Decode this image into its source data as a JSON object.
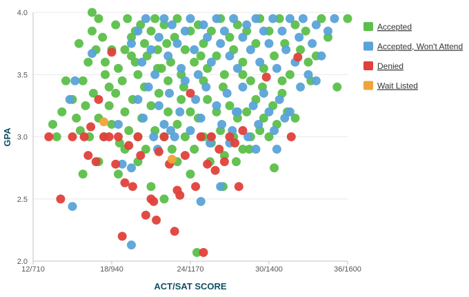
{
  "chart_data": {
    "type": "scatter",
    "xlabel": "ACT/SAT SCORE",
    "ylabel": "GPA",
    "xlim": [
      12,
      36
    ],
    "ylim": [
      2.0,
      4.0
    ],
    "x_ticks": [
      {
        "value": 12,
        "label": "12/710"
      },
      {
        "value": 18,
        "label": "18/940"
      },
      {
        "value": 24,
        "label": "24/1170"
      },
      {
        "value": 30,
        "label": "30/1400"
      },
      {
        "value": 36,
        "label": "36/1600"
      }
    ],
    "y_ticks": [
      {
        "value": 2.0,
        "label": "2.0"
      },
      {
        "value": 2.5,
        "label": "2.5"
      },
      {
        "value": 3.0,
        "label": "3.0"
      },
      {
        "value": 3.5,
        "label": "3.5"
      },
      {
        "value": 4.0,
        "label": "4.0"
      }
    ],
    "grid": true,
    "legend_position": "right",
    "series": [
      {
        "name": "Accepted",
        "color": "#5cbf4a",
        "points": [
          [
            15.5,
            3.75
          ],
          [
            15.8,
            3.45
          ],
          [
            16.2,
            3.6
          ],
          [
            16.5,
            4.0
          ],
          [
            16.5,
            3.85
          ],
          [
            17.0,
            3.95
          ],
          [
            17.3,
            3.8
          ],
          [
            17.5,
            3.6
          ],
          [
            17.8,
            3.4
          ],
          [
            18.0,
            3.7
          ],
          [
            18.3,
            3.9
          ],
          [
            18.5,
            3.55
          ],
          [
            18.8,
            3.45
          ],
          [
            19.0,
            3.7
          ],
          [
            19.2,
            3.95
          ],
          [
            19.5,
            3.8
          ],
          [
            19.8,
            3.6
          ],
          [
            20.0,
            3.5
          ],
          [
            20.2,
            3.9
          ],
          [
            20.5,
            3.75
          ],
          [
            20.7,
            3.65
          ],
          [
            21.0,
            3.85
          ],
          [
            21.3,
            3.95
          ],
          [
            21.5,
            3.7
          ],
          [
            21.8,
            3.55
          ],
          [
            22.0,
            3.9
          ],
          [
            22.3,
            3.45
          ],
          [
            22.5,
            3.6
          ],
          [
            22.8,
            3.8
          ],
          [
            23.0,
            3.95
          ],
          [
            23.3,
            3.5
          ],
          [
            23.6,
            3.7
          ],
          [
            24.0,
            3.85
          ],
          [
            24.3,
            3.6
          ],
          [
            24.6,
            3.9
          ],
          [
            25.0,
            3.75
          ],
          [
            25.3,
            3.55
          ],
          [
            25.6,
            3.85
          ],
          [
            26.0,
            3.65
          ],
          [
            26.3,
            3.95
          ],
          [
            26.6,
            3.5
          ],
          [
            27.0,
            3.8
          ],
          [
            27.3,
            3.7
          ],
          [
            27.6,
            3.9
          ],
          [
            28.0,
            3.6
          ],
          [
            28.3,
            3.85
          ],
          [
            28.6,
            3.45
          ],
          [
            29.0,
            3.75
          ],
          [
            29.3,
            3.95
          ],
          [
            29.6,
            3.55
          ],
          [
            30.0,
            3.85
          ],
          [
            30.4,
            3.65
          ],
          [
            30.8,
            3.95
          ],
          [
            31.2,
            3.75
          ],
          [
            31.6,
            3.5
          ],
          [
            32.0,
            3.9
          ],
          [
            32.4,
            3.7
          ],
          [
            32.8,
            3.85
          ],
          [
            33.2,
            3.45
          ],
          [
            33.6,
            3.65
          ],
          [
            34.0,
            3.95
          ],
          [
            34.5,
            3.8
          ],
          [
            35.2,
            3.4
          ],
          [
            36.0,
            3.95
          ],
          [
            13.5,
            3.1
          ],
          [
            13.8,
            3.0
          ],
          [
            14.2,
            3.2
          ],
          [
            14.5,
            3.45
          ],
          [
            15.0,
            3.3
          ],
          [
            15.3,
            3.15
          ],
          [
            15.6,
            3.05
          ],
          [
            16.0,
            3.25
          ],
          [
            16.3,
            3.0
          ],
          [
            16.6,
            3.35
          ],
          [
            17.0,
            3.15
          ],
          [
            17.4,
            3.0
          ],
          [
            17.8,
            3.25
          ],
          [
            18.0,
            3.1
          ],
          [
            18.3,
            3.35
          ],
          [
            18.6,
            2.95
          ],
          [
            19.0,
            3.2
          ],
          [
            19.3,
            3.05
          ],
          [
            19.6,
            3.3
          ],
          [
            20.0,
            3.0
          ],
          [
            20.3,
            3.15
          ],
          [
            20.6,
            2.9
          ],
          [
            21.0,
            3.25
          ],
          [
            21.3,
            3.05
          ],
          [
            21.6,
            3.35
          ],
          [
            22.0,
            3.0
          ],
          [
            22.3,
            3.2
          ],
          [
            22.6,
            2.9
          ],
          [
            23.0,
            3.1
          ],
          [
            23.3,
            3.3
          ],
          [
            23.6,
            3.0
          ],
          [
            24.0,
            3.2
          ],
          [
            24.3,
            2.9
          ],
          [
            24.6,
            3.15
          ],
          [
            25.0,
            3.0
          ],
          [
            25.3,
            3.3
          ],
          [
            25.6,
            2.95
          ],
          [
            26.0,
            3.2
          ],
          [
            26.3,
            3.05
          ],
          [
            26.6,
            2.85
          ],
          [
            27.0,
            3.25
          ],
          [
            27.3,
            3.0
          ],
          [
            27.6,
            3.15
          ],
          [
            28.0,
            2.9
          ],
          [
            28.3,
            3.2
          ],
          [
            28.6,
            3.0
          ],
          [
            29.0,
            3.3
          ],
          [
            29.3,
            3.05
          ],
          [
            29.6,
            3.15
          ],
          [
            30.0,
            3.0
          ],
          [
            30.3,
            3.25
          ],
          [
            30.6,
            3.1
          ],
          [
            31.0,
            3.35
          ],
          [
            31.4,
            3.2
          ],
          [
            32.0,
            3.15
          ],
          [
            15.8,
            2.7
          ],
          [
            17.0,
            2.8
          ],
          [
            18.5,
            2.7
          ],
          [
            19.0,
            2.9
          ],
          [
            20.0,
            2.8
          ],
          [
            21.0,
            2.6
          ],
          [
            22.0,
            2.5
          ],
          [
            23.0,
            2.8
          ],
          [
            24.0,
            2.7
          ],
          [
            24.5,
            2.07
          ],
          [
            25.5,
            2.8
          ],
          [
            26.5,
            2.6
          ],
          [
            27.5,
            2.8
          ],
          [
            28.5,
            2.9
          ],
          [
            30.4,
            2.75
          ],
          [
            20.5,
            3.4
          ],
          [
            21.5,
            3.55
          ],
          [
            19.5,
            3.65
          ],
          [
            23.5,
            3.4
          ],
          [
            25.0,
            3.45
          ],
          [
            26.5,
            3.4
          ],
          [
            28.0,
            3.5
          ],
          [
            29.5,
            3.4
          ],
          [
            31.0,
            3.45
          ],
          [
            33.0,
            3.6
          ],
          [
            17.5,
            3.5
          ],
          [
            16.8,
            3.7
          ],
          [
            19.8,
            3.85
          ],
          [
            22.2,
            3.75
          ],
          [
            24.8,
            3.65
          ]
        ]
      },
      {
        "name": "Accepted, Won't Attend",
        "color": "#5aa3d8",
        "points": [
          [
            19.5,
            3.75
          ],
          [
            20.0,
            3.85
          ],
          [
            20.3,
            3.6
          ],
          [
            20.6,
            3.95
          ],
          [
            21.0,
            3.7
          ],
          [
            21.3,
            3.5
          ],
          [
            21.6,
            3.8
          ],
          [
            22.0,
            3.95
          ],
          [
            22.3,
            3.65
          ],
          [
            22.6,
            3.9
          ],
          [
            23.0,
            3.75
          ],
          [
            23.3,
            3.55
          ],
          [
            23.6,
            3.85
          ],
          [
            24.0,
            3.95
          ],
          [
            24.3,
            3.7
          ],
          [
            24.6,
            3.5
          ],
          [
            25.0,
            3.9
          ],
          [
            25.3,
            3.8
          ],
          [
            25.6,
            3.6
          ],
          [
            26.0,
            3.95
          ],
          [
            26.3,
            3.75
          ],
          [
            26.6,
            3.85
          ],
          [
            27.0,
            3.65
          ],
          [
            27.3,
            3.95
          ],
          [
            27.6,
            3.55
          ],
          [
            28.0,
            3.8
          ],
          [
            28.3,
            3.9
          ],
          [
            28.6,
            3.7
          ],
          [
            29.0,
            3.95
          ],
          [
            29.3,
            3.6
          ],
          [
            29.6,
            3.85
          ],
          [
            30.0,
            3.75
          ],
          [
            30.3,
            3.95
          ],
          [
            30.6,
            3.55
          ],
          [
            31.0,
            3.85
          ],
          [
            31.3,
            3.7
          ],
          [
            31.6,
            3.95
          ],
          [
            32.0,
            3.6
          ],
          [
            32.3,
            3.8
          ],
          [
            32.6,
            3.95
          ],
          [
            33.0,
            3.5
          ],
          [
            33.3,
            3.75
          ],
          [
            33.6,
            3.9
          ],
          [
            34.0,
            3.65
          ],
          [
            34.5,
            3.85
          ],
          [
            35.0,
            3.95
          ],
          [
            20.0,
            3.3
          ],
          [
            20.4,
            3.15
          ],
          [
            20.8,
            3.4
          ],
          [
            21.2,
            3.0
          ],
          [
            21.6,
            3.25
          ],
          [
            22.0,
            3.1
          ],
          [
            22.4,
            3.35
          ],
          [
            22.8,
            3.0
          ],
          [
            23.2,
            3.2
          ],
          [
            23.6,
            3.45
          ],
          [
            24.0,
            3.05
          ],
          [
            24.4,
            3.3
          ],
          [
            24.8,
            3.15
          ],
          [
            25.2,
            3.4
          ],
          [
            25.6,
            3.0
          ],
          [
            26.0,
            3.25
          ],
          [
            26.4,
            3.1
          ],
          [
            26.8,
            3.35
          ],
          [
            27.2,
            3.05
          ],
          [
            27.6,
            3.2
          ],
          [
            28.0,
            3.4
          ],
          [
            28.4,
            3.0
          ],
          [
            28.8,
            3.25
          ],
          [
            29.2,
            3.1
          ],
          [
            29.6,
            3.35
          ],
          [
            30.0,
            3.2
          ],
          [
            30.4,
            3.05
          ],
          [
            30.8,
            3.3
          ],
          [
            31.2,
            3.15
          ],
          [
            31.6,
            3.2
          ],
          [
            32.4,
            3.4
          ],
          [
            33.6,
            3.45
          ],
          [
            14.8,
            3.3
          ],
          [
            15.2,
            3.45
          ],
          [
            15.0,
            2.44
          ],
          [
            16.5,
            3.67
          ],
          [
            18.5,
            3.1
          ],
          [
            18.8,
            2.78
          ],
          [
            19.5,
            2.13
          ],
          [
            19.5,
            2.75
          ],
          [
            24.8,
            2.48
          ],
          [
            26.3,
            2.6
          ],
          [
            27.5,
            3.2
          ],
          [
            29.0,
            2.9
          ],
          [
            30.6,
            2.9
          ],
          [
            21.5,
            2.9
          ],
          [
            22.5,
            3.05
          ],
          [
            25.5,
            2.95
          ],
          [
            27.0,
            2.95
          ]
        ]
      },
      {
        "name": "Denied",
        "color": "#e0413b",
        "points": [
          [
            13.2,
            3.0
          ],
          [
            14.1,
            2.5
          ],
          [
            15.0,
            3.0
          ],
          [
            15.9,
            3.0
          ],
          [
            16.2,
            2.85
          ],
          [
            16.4,
            3.08
          ],
          [
            16.8,
            2.8
          ],
          [
            17.0,
            3.3
          ],
          [
            17.4,
            3.0
          ],
          [
            17.8,
            3.0
          ],
          [
            18.0,
            3.68
          ],
          [
            18.3,
            2.78
          ],
          [
            18.5,
            3.0
          ],
          [
            18.8,
            2.2
          ],
          [
            19.0,
            2.63
          ],
          [
            19.3,
            2.93
          ],
          [
            19.6,
            2.6
          ],
          [
            20.0,
            3.0
          ],
          [
            20.2,
            2.85
          ],
          [
            20.6,
            2.37
          ],
          [
            21.0,
            2.5
          ],
          [
            21.2,
            2.48
          ],
          [
            21.4,
            2.33
          ],
          [
            21.6,
            2.88
          ],
          [
            22.0,
            3.0
          ],
          [
            22.4,
            2.78
          ],
          [
            22.8,
            2.24
          ],
          [
            23.0,
            2.57
          ],
          [
            23.2,
            2.53
          ],
          [
            23.6,
            2.85
          ],
          [
            24.0,
            3.35
          ],
          [
            24.4,
            2.6
          ],
          [
            24.8,
            3.0
          ],
          [
            25.0,
            2.07
          ],
          [
            25.3,
            2.78
          ],
          [
            25.6,
            3.0
          ],
          [
            25.9,
            2.73
          ],
          [
            26.2,
            2.9
          ],
          [
            26.6,
            2.8
          ],
          [
            27.0,
            3.0
          ],
          [
            27.4,
            2.95
          ],
          [
            27.7,
            2.6
          ],
          [
            28.0,
            3.05
          ],
          [
            29.8,
            3.48
          ],
          [
            31.7,
            3.0
          ],
          [
            32.2,
            3.64
          ]
        ]
      },
      {
        "name": "Wait Listed",
        "color": "#f0a33a",
        "points": [
          [
            17.4,
            3.12
          ],
          [
            22.6,
            2.82
          ]
        ]
      }
    ]
  }
}
